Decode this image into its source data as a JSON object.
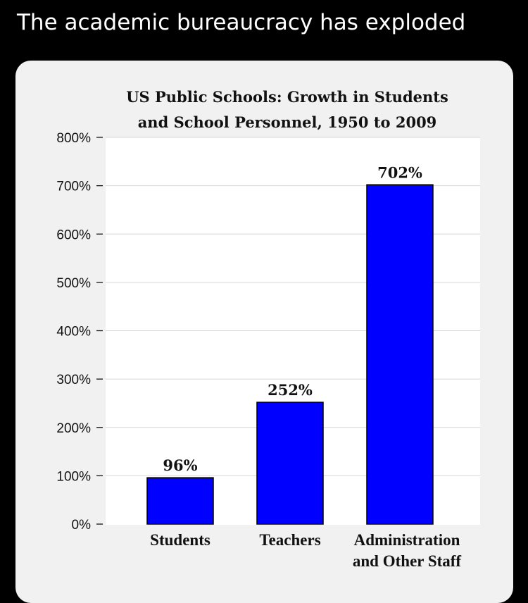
{
  "post": {
    "caption": "The academic bureaucracy has exploded"
  },
  "chart_data": {
    "type": "bar",
    "title_lines": [
      "US Public Schools: Growth in Students",
      "and School Personnel, 1950 to 2009"
    ],
    "categories": [
      [
        "Students"
      ],
      [
        "Teachers"
      ],
      [
        "Administration",
        "and Other Staff"
      ]
    ],
    "values": [
      96,
      252,
      702
    ],
    "data_labels": [
      "96%",
      "252%",
      "702%"
    ],
    "yticks": [
      "0%",
      "100%",
      "200%",
      "300%",
      "400%",
      "500%",
      "600%",
      "700%",
      "800%"
    ],
    "ylim": [
      0,
      800
    ],
    "grid": true,
    "legend": "none",
    "bar_color": "#0000ff",
    "bar_edge_color": "#000000"
  }
}
